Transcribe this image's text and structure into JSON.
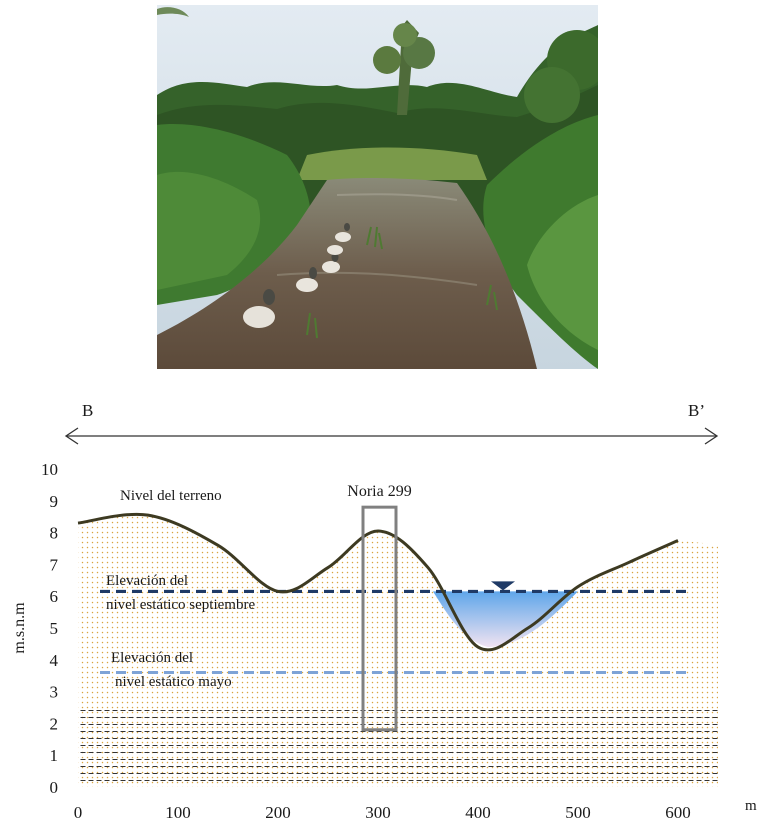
{
  "photo": {
    "subject": "wetland-stream-with-ducks",
    "colors": {
      "sky": "#cfdbe6",
      "vegetation": "#3f6b2a",
      "water": "#6b5a48",
      "ducks": "#e8e4dc"
    }
  },
  "section": {
    "start_label": "B",
    "end_label": "B’"
  },
  "chart_data": {
    "type": "cross-section",
    "xlim": [
      0,
      600
    ],
    "ylim": [
      0,
      10
    ],
    "x_ticks": [
      "0",
      "100",
      "200",
      "300",
      "400",
      "500",
      "600"
    ],
    "y_ticks": [
      "0",
      "1",
      "2",
      "3",
      "4",
      "5",
      "6",
      "7",
      "8",
      "9",
      "10"
    ],
    "xlabel": "m",
    "ylabel": "m.s.n.m",
    "terrain": {
      "label": "Nivel del terreno",
      "x": [
        0,
        70,
        140,
        200,
        250,
        300,
        350,
        400,
        450,
        500,
        550,
        600
      ],
      "y": [
        8.3,
        8.55,
        7.6,
        6.15,
        6.9,
        8.05,
        6.9,
        4.4,
        5.0,
        6.3,
        7.05,
        7.75
      ]
    },
    "static_level_september": {
      "label_line1": "Elevación del",
      "label_line2": "nivel estático septiembre",
      "y": 6.15
    },
    "static_level_may": {
      "label_line1": "Elevación del",
      "label_line2": "nivel estático mayo",
      "y": 3.6
    },
    "noria": {
      "label": "Noria 299",
      "x_range": [
        285,
        318
      ],
      "y_range": [
        1.8,
        8.8
      ]
    },
    "lower_layer_top": 2.6,
    "water_surface_x": 425,
    "colors": {
      "terrain_line": "#3d3a22",
      "september_line": "#1f3a66",
      "may_line": "#7ea3d6",
      "noria": "#808080",
      "sand_dots": "#d9a441",
      "clay_dashes": "#333333",
      "water_top": "#5fa6ea",
      "water_bottom": "#f1e3f1",
      "water_marker": "#1f3a66"
    }
  }
}
